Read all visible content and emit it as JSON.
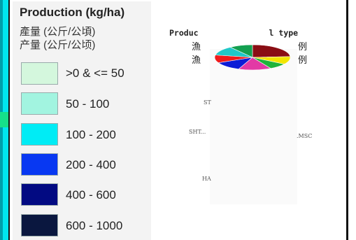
{
  "legend": {
    "title": "Production (kg/ha)",
    "subtitle_traditional": "產量 (公斤/公頃)",
    "subtitle_simplified": "产量 (公斤/公顷)",
    "classes": [
      {
        "label": ">0 & <= 50",
        "color": "#d4f7dd"
      },
      {
        "label": "50 - 100",
        "color": "#a2f4e0"
      },
      {
        "label": "100 - 200",
        "color": "#00ecf5"
      },
      {
        "label": "200 - 400",
        "color": "#0838f2"
      },
      {
        "label": "400 - 600",
        "color": "#020a82"
      },
      {
        "label": "600 - 1000",
        "color": "#0a173f"
      }
    ]
  },
  "inset_chart": {
    "title_start": "Produc",
    "title_end": "l type",
    "sub_line1_start": "漁",
    "sub_line1_end": "例",
    "sub_line2_start": "漁",
    "sub_line2_end": "例",
    "axis_glyphs": {
      "st": "ST",
      "sht": "SHT...",
      "msc": ".MSC",
      "ha": "HA"
    },
    "slices": [
      {
        "value": 24,
        "color": "#8a0e14"
      },
      {
        "value": 10,
        "color": "#f2e600"
      },
      {
        "value": 8,
        "color": "#1fb43a"
      },
      {
        "value": 14,
        "color": "#e23aa5"
      },
      {
        "value": 12,
        "color": "#0d1cd6"
      },
      {
        "value": 10,
        "color": "#f01a1a"
      },
      {
        "value": 12,
        "color": "#20c8c8"
      },
      {
        "value": 10,
        "color": "#13a050"
      }
    ]
  }
}
